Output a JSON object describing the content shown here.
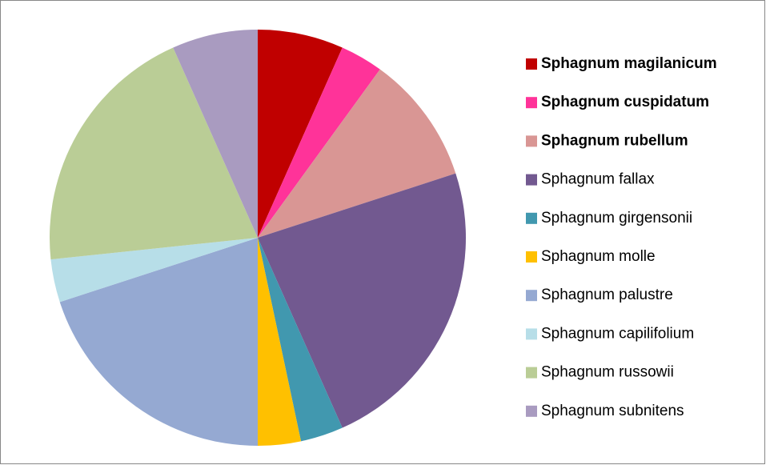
{
  "chart_data": {
    "type": "pie",
    "categories": [
      "Sphagnum magilanicum",
      "Sphagnum cuspidatum",
      "Sphagnum rubellum",
      "Sphagnum fallax",
      "Sphagnum girgensonii",
      "Sphagnum molle",
      "Sphagnum palustre",
      "Sphagnum capilifolium",
      "Sphagnum russowii",
      "Sphagnum subnitens"
    ],
    "values": [
      2,
      1,
      3,
      7,
      1,
      1,
      6,
      1,
      6,
      2
    ],
    "colors": [
      "#c00000",
      "#ff3399",
      "#d99694",
      "#725990",
      "#4198af",
      "#ffc000",
      "#95a9d2",
      "#b7dee8",
      "#bacd96",
      "#a99bc0"
    ],
    "bold": [
      true,
      true,
      true,
      false,
      false,
      false,
      false,
      false,
      false,
      false
    ],
    "legend": "right"
  }
}
